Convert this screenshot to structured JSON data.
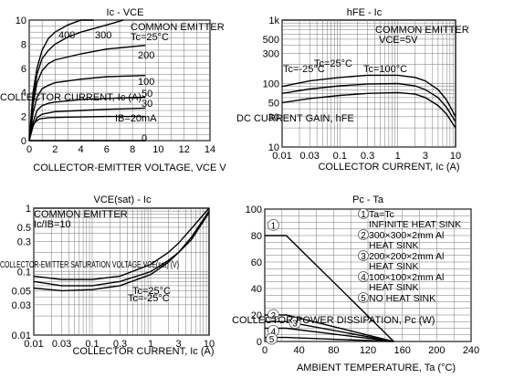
{
  "chart_data": [
    {
      "type": "line",
      "title": "Ic - VCE",
      "note": "COMMON EMITTER",
      "condition": "Tc=25°C",
      "xlabel": "COLLECTOR-EMITTER VOLTAGE, VCE  V",
      "ylabel": "COLLECTOR CURRENT, Ic (A)",
      "xlim": [
        0,
        14
      ],
      "ylim": [
        0,
        10
      ],
      "grid": true,
      "x_ticks": [
        "0",
        "2",
        "4",
        "6",
        "8",
        "10",
        "12",
        "14"
      ],
      "y_ticks": [
        "0",
        "2",
        "4",
        "6",
        "8",
        "10"
      ],
      "series": [
        {
          "name": "400",
          "x": [
            0,
            0.3,
            0.6,
            1,
            1.5,
            2,
            3,
            4,
            5
          ],
          "values": [
            0,
            4,
            6,
            7.5,
            8.5,
            9,
            9.6,
            10,
            10
          ]
        },
        {
          "name": "300",
          "x": [
            0,
            0.3,
            0.6,
            1,
            1.5,
            2,
            3,
            4,
            6,
            7.3
          ],
          "values": [
            0,
            3.5,
            5.5,
            6.8,
            7.5,
            8,
            8.6,
            9,
            9.6,
            10
          ]
        },
        {
          "name": "200",
          "x": [
            0,
            0.3,
            0.6,
            1,
            1.5,
            2,
            4,
            6,
            9
          ],
          "values": [
            0,
            3,
            4.8,
            5.8,
            6.4,
            6.7,
            7.2,
            7.6,
            7.9
          ]
        },
        {
          "name": "100",
          "x": [
            0,
            0.3,
            0.6,
            1,
            1.5,
            2,
            4,
            6,
            9
          ],
          "values": [
            0,
            2.3,
            3.6,
            4.3,
            4.6,
            4.8,
            5.1,
            5.3,
            5.4
          ]
        },
        {
          "name": "50",
          "x": [
            0,
            0.3,
            0.6,
            1,
            1.5,
            2,
            4,
            6,
            9
          ],
          "values": [
            0,
            1.5,
            2.5,
            2.9,
            3.1,
            3.2,
            3.4,
            3.5,
            3.6
          ]
        },
        {
          "name": "30",
          "x": [
            0,
            0.3,
            0.6,
            1,
            2,
            4,
            6,
            9
          ],
          "values": [
            0,
            1.2,
            1.9,
            2.2,
            2.4,
            2.5,
            2.6,
            2.7
          ]
        },
        {
          "name": "IB=20mA",
          "x": [
            0,
            0.2,
            0.4,
            0.8,
            1.5,
            3,
            6,
            9
          ],
          "values": [
            0,
            1,
            1.5,
            1.8,
            1.9,
            1.95,
            2,
            2
          ]
        },
        {
          "name": "0",
          "x": [
            0,
            9
          ],
          "values": [
            0,
            0
          ]
        }
      ]
    },
    {
      "type": "line",
      "title": "hFE - Ic",
      "note": "COMMON EMITTER",
      "condition": "VCE=5V",
      "xlabel": "COLLECTOR CURRENT, Ic (A)",
      "ylabel": "DC CURRENT GAIN, hFE",
      "xscale": "log",
      "yscale": "log",
      "xlim": [
        0.01,
        10
      ],
      "ylim": [
        10,
        1000
      ],
      "grid": true,
      "x_ticks": [
        "0.01",
        "0.03",
        "0.1",
        "0.3",
        "1",
        "3",
        "10"
      ],
      "y_ticks": [
        "10",
        "30",
        "50",
        "100",
        "300",
        "500",
        "1k"
      ],
      "series": [
        {
          "name": "Tc=100°C",
          "x": [
            0.01,
            0.03,
            0.1,
            0.3,
            1,
            2,
            3,
            5,
            7,
            10
          ],
          "values": [
            90,
            110,
            125,
            135,
            135,
            125,
            110,
            80,
            55,
            30
          ]
        },
        {
          "name": "Tc=25°C",
          "x": [
            0.01,
            0.03,
            0.1,
            0.3,
            1,
            2,
            3,
            5,
            7,
            10
          ],
          "values": [
            70,
            82,
            92,
            98,
            100,
            92,
            80,
            60,
            42,
            25
          ]
        },
        {
          "name": "Tc=-25°C",
          "x": [
            0.01,
            0.03,
            0.1,
            0.3,
            1,
            2,
            3,
            5,
            7,
            10
          ],
          "values": [
            50,
            58,
            65,
            70,
            72,
            68,
            60,
            45,
            33,
            20
          ]
        }
      ]
    },
    {
      "type": "line",
      "title": "VCE(sat) - Ic",
      "note": "COMMON EMITTER",
      "condition": "Ic/IB=10",
      "xlabel": "COLLECTOR CURRENT, Ic (A)",
      "ylabel": "COLLECTOR-EMITTER SATURATION VOLTAGE VCE(sat) (V)",
      "xscale": "log",
      "yscale": "log",
      "xlim": [
        0.01,
        10
      ],
      "ylim": [
        0.01,
        1
      ],
      "grid": true,
      "x_ticks": [
        "0.01",
        "0.03",
        "0.1",
        "0.3",
        "1",
        "3",
        "10"
      ],
      "y_ticks": [
        "0.01",
        "0.03",
        "0.05",
        "0.1",
        "0.3",
        "0.5",
        "1"
      ],
      "series": [
        {
          "name": "Tc=25°C",
          "x": [
            0.01,
            0.03,
            0.1,
            0.3,
            1,
            2,
            3,
            5,
            10
          ],
          "values": [
            0.07,
            0.06,
            0.06,
            0.07,
            0.1,
            0.15,
            0.2,
            0.35,
            0.9
          ]
        },
        {
          "name": "Tc=-25°C",
          "x": [
            0.01,
            0.03,
            0.1,
            0.3,
            1,
            2,
            3,
            5,
            10
          ],
          "values": [
            0.055,
            0.05,
            0.052,
            0.06,
            0.09,
            0.14,
            0.2,
            0.32,
            0.85
          ]
        },
        {
          "name": "",
          "x": [
            0.01,
            0.03,
            0.1,
            0.3,
            1,
            2,
            3,
            5,
            10
          ],
          "values": [
            0.085,
            0.075,
            0.075,
            0.085,
            0.13,
            0.2,
            0.28,
            0.48,
            1
          ]
        }
      ]
    },
    {
      "type": "line",
      "title": "Pc - Ta",
      "xlabel": "AMBIENT TEMPERATURE, Ta (°C)",
      "ylabel": "COLLECTOR POWER DISSIPATION, Pc (W)",
      "xlim": [
        0,
        240
      ],
      "ylim": [
        0,
        100
      ],
      "grid": true,
      "x_ticks": [
        "0",
        "40",
        "80",
        "120",
        "160",
        "200",
        "240"
      ],
      "y_ticks": [
        "0",
        "20",
        "40",
        "60",
        "80",
        "100"
      ],
      "legend": [
        {
          "num": "1",
          "text": "Ta=Tc\nINFINITE HEAT SINK"
        },
        {
          "num": "2",
          "text": "300×300×2mm Al\nHEAT SINK"
        },
        {
          "num": "3",
          "text": "200×200×2mm Al\nHEAT SINK"
        },
        {
          "num": "4",
          "text": "100×100×2mm Al\nHEAT SINK"
        },
        {
          "num": "5",
          "text": "NO HEAT SINK"
        }
      ],
      "series": [
        {
          "name": "1",
          "x": [
            0,
            25,
            150
          ],
          "values": [
            80,
            80,
            0
          ]
        },
        {
          "name": "2",
          "x": [
            0,
            25,
            150
          ],
          "values": [
            20,
            20,
            0
          ]
        },
        {
          "name": "3",
          "x": [
            0,
            25,
            150
          ],
          "values": [
            15,
            15,
            0
          ]
        },
        {
          "name": "4",
          "x": [
            0,
            25,
            150
          ],
          "values": [
            10,
            10,
            0
          ]
        },
        {
          "name": "5",
          "x": [
            0,
            25,
            150
          ],
          "values": [
            3,
            3,
            0
          ]
        }
      ]
    }
  ]
}
